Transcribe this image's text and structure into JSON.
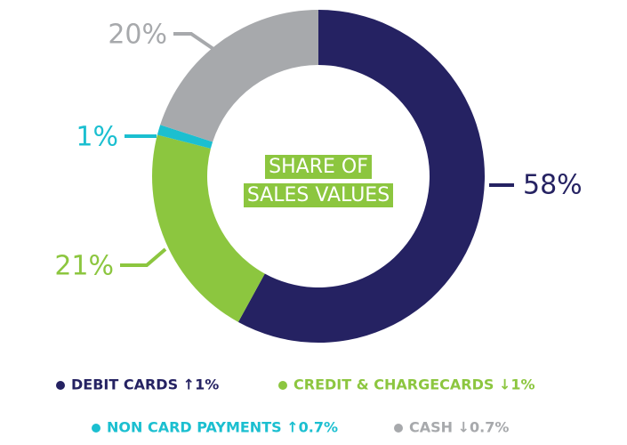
{
  "chart_data": {
    "type": "donut",
    "title": "SHARE OF SALES VALUES",
    "categories": [
      "DEBIT CARDS ↑1%",
      "CREDIT & CHARGECARDS ↓1%",
      "NON CARD PAYMENTS ↑0.7%",
      "CASH ↓0.7%"
    ],
    "values": [
      58,
      21,
      1,
      20
    ],
    "value_labels": [
      "58%",
      "21%",
      "1%",
      "20%"
    ],
    "colors": [
      "#252262",
      "#8cc63f",
      "#1bbfd0",
      "#a7a9ac"
    ],
    "title_color": "#8cc63f"
  }
}
